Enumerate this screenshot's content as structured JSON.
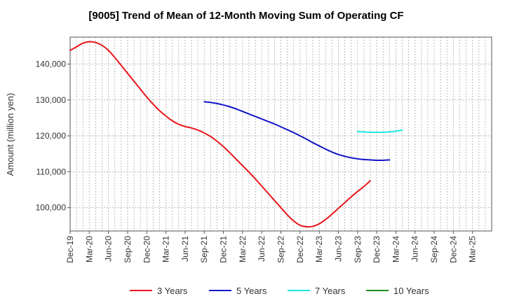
{
  "chart_data": {
    "type": "line",
    "title": "[9005]  Trend of Mean of 12-Month Moving Sum of Operating CF",
    "xlabel": "",
    "ylabel": "Amount (million yen)",
    "ylim": [
      93500,
      147500
    ],
    "yticks": [
      100000,
      110000,
      120000,
      130000,
      140000
    ],
    "ytick_labels": [
      "100,000",
      "110,000",
      "120,000",
      "130,000",
      "140,000"
    ],
    "xlim_index": [
      0,
      66
    ],
    "xtick_labels": [
      "Dec-19",
      "Mar-20",
      "Jun-20",
      "Sep-20",
      "Dec-20",
      "Mar-21",
      "Jun-21",
      "Sep-21",
      "Dec-21",
      "Mar-22",
      "Jun-22",
      "Sep-22",
      "Dec-22",
      "Mar-23",
      "Jun-23",
      "Sep-23",
      "Dec-23",
      "Mar-24",
      "Jun-24",
      "Sep-24",
      "Dec-24",
      "Mar-25"
    ],
    "grid": true,
    "legend_position": "bottom",
    "series": [
      {
        "name": "3 Years",
        "color": "#e8151a",
        "start_index": 0,
        "values": [
          143800,
          144800,
          145800,
          146200,
          146000,
          145200,
          143800,
          141800,
          139600,
          137400,
          135200,
          133000,
          130800,
          128800,
          127000,
          125500,
          124200,
          123200,
          122600,
          122200,
          121600,
          120800,
          119800,
          118500,
          117000,
          115300,
          113500,
          111700,
          109900,
          108000,
          106000,
          104000,
          102000,
          100000,
          98000,
          96300,
          95100,
          94700,
          94800,
          95500,
          96700,
          98200,
          99800,
          101400,
          103000,
          104500,
          105900,
          107500
        ]
      },
      {
        "name": "5 Years",
        "color": "#1414c8",
        "start_index": 21,
        "values": [
          129500,
          129300,
          129000,
          128600,
          128100,
          127500,
          126800,
          126100,
          125400,
          124700,
          124000,
          123300,
          122500,
          121700,
          120900,
          120000,
          119100,
          118100,
          117200,
          116300,
          115500,
          114800,
          114300,
          113900,
          113600,
          113400,
          113300,
          113200,
          113200,
          113300
        ]
      },
      {
        "name": "7 Years",
        "color": "#1ee6e6",
        "start_index": 45,
        "values": [
          121200,
          121100,
          121000,
          121000,
          121000,
          121100,
          121300,
          121600
        ]
      },
      {
        "name": "10 Years",
        "color": "#1e8c1e",
        "start_index": null,
        "values": []
      }
    ]
  }
}
